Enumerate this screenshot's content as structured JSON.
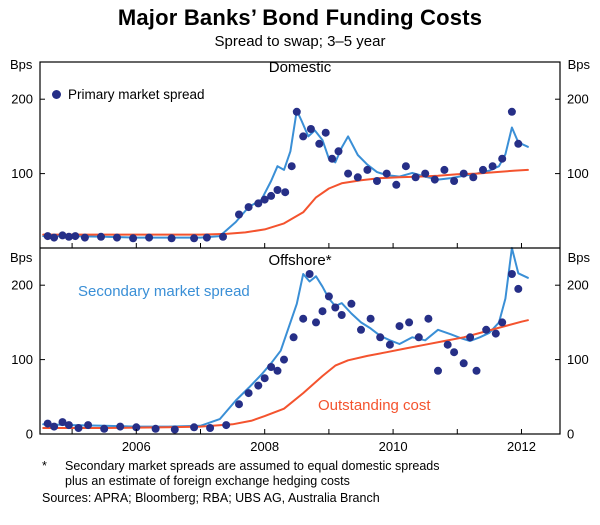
{
  "title": "Major Banks’ Bond Funding Costs",
  "subtitle": "Spread to swap; 3–5 year",
  "unit_label": "Bps",
  "colors": {
    "primary_dot": "#262f87",
    "secondary_line": "#3a8fd6",
    "outstanding_line": "#f4532e"
  },
  "footnote": {
    "marker": "*",
    "line1": "Secondary market spreads are assumed to equal domestic spreads",
    "line2": "plus an estimate of foreign exchange hedging costs",
    "sources": "Sources: APRA; Bloomberg; RBA; UBS AG, Australia Branch"
  },
  "x_axis": {
    "range": [
      2004.5,
      2012.6
    ],
    "ticks": [
      2005,
      2006,
      2007,
      2008,
      2009,
      2010,
      2011,
      2012
    ],
    "labels": [
      {
        "v": 2006,
        "t": "2006"
      },
      {
        "v": 2008,
        "t": "2008"
      },
      {
        "v": 2010,
        "t": "2010"
      },
      {
        "v": 2012,
        "t": "2012"
      }
    ]
  },
  "chart_data": [
    {
      "type": "line",
      "title": "Domestic",
      "y_range": [
        0,
        250
      ],
      "y_ticks": [
        100,
        200
      ],
      "series": [
        {
          "name": "Primary market spread",
          "style": "scatter",
          "color_key": "primary_dot",
          "points": [
            [
              2004.62,
              16
            ],
            [
              2004.72,
              14
            ],
            [
              2004.85,
              17
            ],
            [
              2004.95,
              15
            ],
            [
              2005.05,
              16
            ],
            [
              2005.2,
              14
            ],
            [
              2005.45,
              15
            ],
            [
              2005.7,
              14
            ],
            [
              2005.95,
              13
            ],
            [
              2006.2,
              14
            ],
            [
              2006.55,
              13
            ],
            [
              2006.9,
              13
            ],
            [
              2007.1,
              14
            ],
            [
              2007.35,
              15
            ],
            [
              2007.6,
              45
            ],
            [
              2007.75,
              55
            ],
            [
              2007.9,
              60
            ],
            [
              2008.0,
              65
            ],
            [
              2008.1,
              70
            ],
            [
              2008.2,
              78
            ],
            [
              2008.32,
              75
            ],
            [
              2008.42,
              110
            ],
            [
              2008.5,
              183
            ],
            [
              2008.6,
              150
            ],
            [
              2008.72,
              160
            ],
            [
              2008.85,
              140
            ],
            [
              2008.95,
              155
            ],
            [
              2009.05,
              120
            ],
            [
              2009.15,
              130
            ],
            [
              2009.3,
              100
            ],
            [
              2009.45,
              95
            ],
            [
              2009.6,
              105
            ],
            [
              2009.75,
              90
            ],
            [
              2009.9,
              100
            ],
            [
              2010.05,
              85
            ],
            [
              2010.2,
              110
            ],
            [
              2010.35,
              95
            ],
            [
              2010.5,
              100
            ],
            [
              2010.65,
              92
            ],
            [
              2010.8,
              105
            ],
            [
              2010.95,
              90
            ],
            [
              2011.1,
              100
            ],
            [
              2011.25,
              95
            ],
            [
              2011.4,
              105
            ],
            [
              2011.55,
              110
            ],
            [
              2011.7,
              120
            ],
            [
              2011.85,
              183
            ],
            [
              2011.95,
              140
            ]
          ]
        },
        {
          "name": "Secondary market spread",
          "style": "line",
          "color_key": "secondary_line",
          "points": [
            [
              2004.55,
              16
            ],
            [
              2005.0,
              16
            ],
            [
              2005.5,
              15
            ],
            [
              2006.0,
              14
            ],
            [
              2006.5,
              14
            ],
            [
              2007.0,
              14
            ],
            [
              2007.3,
              16
            ],
            [
              2007.55,
              35
            ],
            [
              2007.75,
              55
            ],
            [
              2007.95,
              65
            ],
            [
              2008.1,
              90
            ],
            [
              2008.2,
              110
            ],
            [
              2008.3,
              105
            ],
            [
              2008.4,
              130
            ],
            [
              2008.5,
              185
            ],
            [
              2008.58,
              170
            ],
            [
              2008.68,
              150
            ],
            [
              2008.78,
              158
            ],
            [
              2008.9,
              145
            ],
            [
              2009.0,
              120
            ],
            [
              2009.1,
              115
            ],
            [
              2009.2,
              135
            ],
            [
              2009.3,
              150
            ],
            [
              2009.45,
              125
            ],
            [
              2009.6,
              112
            ],
            [
              2009.75,
              102
            ],
            [
              2009.9,
              98
            ],
            [
              2010.1,
              96
            ],
            [
              2010.3,
              101
            ],
            [
              2010.5,
              96
            ],
            [
              2010.7,
              92
            ],
            [
              2010.9,
              94
            ],
            [
              2011.1,
              97
            ],
            [
              2011.3,
              100
            ],
            [
              2011.5,
              104
            ],
            [
              2011.65,
              110
            ],
            [
              2011.75,
              126
            ],
            [
              2011.85,
              162
            ],
            [
              2011.95,
              142
            ],
            [
              2012.1,
              136
            ]
          ]
        },
        {
          "name": "Outstanding cost",
          "style": "line",
          "color_key": "outstanding_line",
          "points": [
            [
              2004.55,
              18
            ],
            [
              2005.5,
              18
            ],
            [
              2006.5,
              18
            ],
            [
              2007.0,
              18
            ],
            [
              2007.4,
              19
            ],
            [
              2007.7,
              21
            ],
            [
              2008.0,
              25
            ],
            [
              2008.3,
              33
            ],
            [
              2008.6,
              48
            ],
            [
              2008.8,
              68
            ],
            [
              2009.0,
              80
            ],
            [
              2009.2,
              87
            ],
            [
              2009.5,
              91
            ],
            [
              2009.8,
              94
            ],
            [
              2010.1,
              95
            ],
            [
              2010.4,
              96
            ],
            [
              2010.7,
              97
            ],
            [
              2011.0,
              99
            ],
            [
              2011.3,
              100
            ],
            [
              2011.6,
              102
            ],
            [
              2011.9,
              104
            ],
            [
              2012.1,
              105
            ]
          ]
        }
      ]
    },
    {
      "type": "line",
      "title": "Offshore*",
      "y_range": [
        0,
        250
      ],
      "y_ticks": [
        0,
        100,
        200
      ],
      "series": [
        {
          "name": "Primary market spread",
          "style": "scatter",
          "color_key": "primary_dot",
          "points": [
            [
              2004.62,
              14
            ],
            [
              2004.72,
              10
            ],
            [
              2004.85,
              16
            ],
            [
              2004.95,
              12
            ],
            [
              2005.1,
              8
            ],
            [
              2005.25,
              12
            ],
            [
              2005.5,
              7
            ],
            [
              2005.75,
              10
            ],
            [
              2006.0,
              9
            ],
            [
              2006.3,
              7
            ],
            [
              2006.6,
              6
            ],
            [
              2006.9,
              9
            ],
            [
              2007.15,
              8
            ],
            [
              2007.4,
              12
            ],
            [
              2007.6,
              40
            ],
            [
              2007.75,
              55
            ],
            [
              2007.9,
              65
            ],
            [
              2008.0,
              75
            ],
            [
              2008.1,
              90
            ],
            [
              2008.2,
              85
            ],
            [
              2008.3,
              100
            ],
            [
              2008.45,
              130
            ],
            [
              2008.6,
              155
            ],
            [
              2008.7,
              215
            ],
            [
              2008.8,
              150
            ],
            [
              2008.9,
              165
            ],
            [
              2009.0,
              185
            ],
            [
              2009.1,
              170
            ],
            [
              2009.2,
              160
            ],
            [
              2009.35,
              175
            ],
            [
              2009.5,
              140
            ],
            [
              2009.65,
              155
            ],
            [
              2009.8,
              130
            ],
            [
              2009.95,
              120
            ],
            [
              2010.1,
              145
            ],
            [
              2010.25,
              150
            ],
            [
              2010.4,
              130
            ],
            [
              2010.55,
              155
            ],
            [
              2010.7,
              85
            ],
            [
              2010.85,
              120
            ],
            [
              2010.95,
              110
            ],
            [
              2011.1,
              95
            ],
            [
              2011.2,
              130
            ],
            [
              2011.3,
              85
            ],
            [
              2011.45,
              140
            ],
            [
              2011.6,
              135
            ],
            [
              2011.7,
              150
            ],
            [
              2011.85,
              215
            ],
            [
              2011.95,
              195
            ]
          ]
        },
        {
          "name": "Secondary market spread",
          "style": "line",
          "color_key": "secondary_line",
          "points": [
            [
              2004.55,
              13
            ],
            [
              2005.0,
              12
            ],
            [
              2005.5,
              11
            ],
            [
              2006.0,
              10
            ],
            [
              2006.5,
              10
            ],
            [
              2007.0,
              11
            ],
            [
              2007.3,
              20
            ],
            [
              2007.55,
              45
            ],
            [
              2007.75,
              62
            ],
            [
              2007.95,
              80
            ],
            [
              2008.1,
              95
            ],
            [
              2008.25,
              112
            ],
            [
              2008.4,
              150
            ],
            [
              2008.5,
              175
            ],
            [
              2008.6,
              215
            ],
            [
              2008.7,
              205
            ],
            [
              2008.8,
              212
            ],
            [
              2008.9,
              198
            ],
            [
              2009.0,
              182
            ],
            [
              2009.1,
              172
            ],
            [
              2009.2,
              176
            ],
            [
              2009.35,
              162
            ],
            [
              2009.5,
              150
            ],
            [
              2009.65,
              142
            ],
            [
              2009.8,
              132
            ],
            [
              2009.95,
              126
            ],
            [
              2010.1,
              121
            ],
            [
              2010.3,
              130
            ],
            [
              2010.5,
              126
            ],
            [
              2010.7,
              140
            ],
            [
              2010.9,
              134
            ],
            [
              2011.05,
              129
            ],
            [
              2011.2,
              125
            ],
            [
              2011.35,
              130
            ],
            [
              2011.5,
              136
            ],
            [
              2011.65,
              150
            ],
            [
              2011.75,
              182
            ],
            [
              2011.85,
              250
            ],
            [
              2011.95,
              216
            ],
            [
              2012.1,
              210
            ]
          ]
        },
        {
          "name": "Outstanding cost",
          "style": "line",
          "color_key": "outstanding_line",
          "points": [
            [
              2004.55,
              8
            ],
            [
              2005.5,
              8
            ],
            [
              2006.5,
              9
            ],
            [
              2007.0,
              10
            ],
            [
              2007.5,
              13
            ],
            [
              2007.8,
              18
            ],
            [
              2008.0,
              24
            ],
            [
              2008.3,
              34
            ],
            [
              2008.6,
              55
            ],
            [
              2008.9,
              78
            ],
            [
              2009.1,
              92
            ],
            [
              2009.3,
              99
            ],
            [
              2009.6,
              105
            ],
            [
              2009.9,
              110
            ],
            [
              2010.2,
              115
            ],
            [
              2010.5,
              120
            ],
            [
              2010.8,
              125
            ],
            [
              2011.1,
              130
            ],
            [
              2011.4,
              137
            ],
            [
              2011.7,
              144
            ],
            [
              2012.0,
              151
            ],
            [
              2012.1,
              153
            ]
          ]
        }
      ]
    }
  ]
}
